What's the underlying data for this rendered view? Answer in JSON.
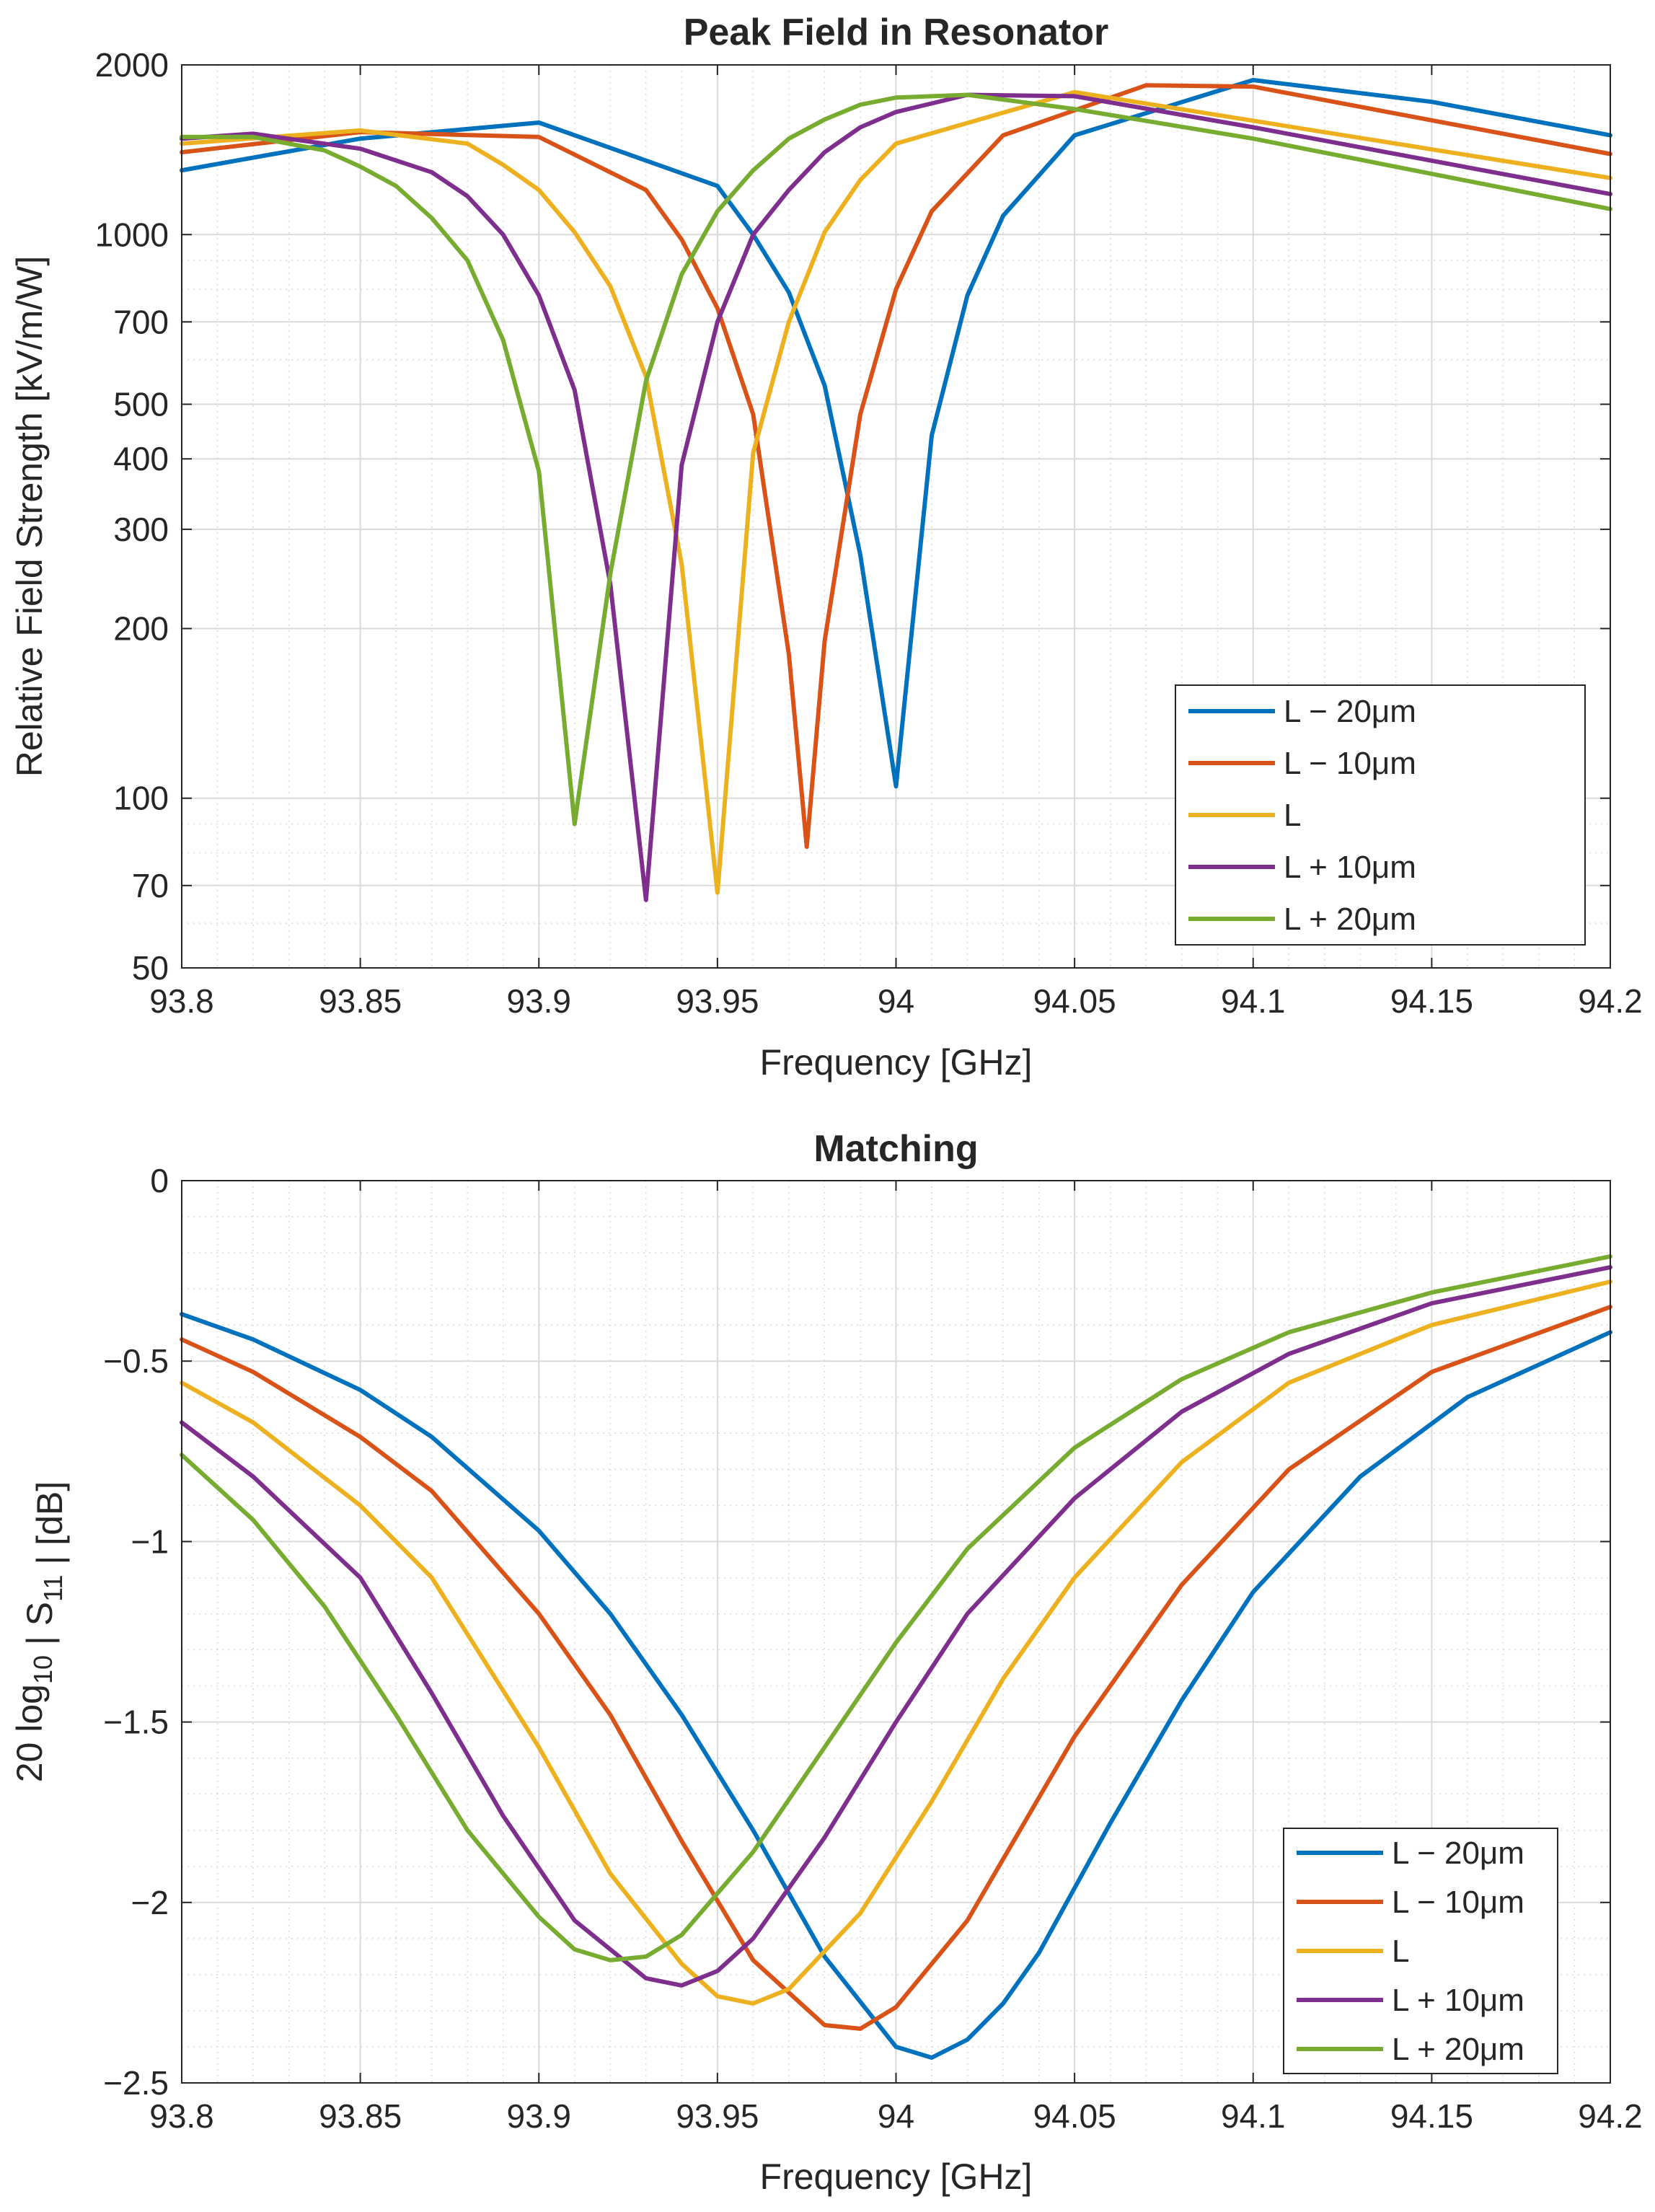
{
  "chart_data": [
    {
      "type": "line",
      "title": "Peak Field in Resonator",
      "xlabel": "Frequency [GHz]",
      "ylabel": "Relative Field Strength [kV/m/W]",
      "yscale": "log",
      "xlim": [
        93.8,
        94.2
      ],
      "ylim": [
        50,
        2000
      ],
      "xticks": [
        93.8,
        93.85,
        93.9,
        93.95,
        94.0,
        94.05,
        94.1,
        94.15,
        94.2
      ],
      "xtick_labels": [
        "93.8",
        "93.85",
        "93.9",
        "93.95",
        "94",
        "94.05",
        "94.1",
        "94.15",
        "94.2"
      ],
      "yticks": [
        50,
        70,
        100,
        200,
        300,
        400,
        500,
        700,
        1000,
        2000
      ],
      "ytick_labels": [
        "50",
        "70",
        "100",
        "200",
        "300",
        "400",
        "500",
        "700",
        "1000",
        "2000"
      ],
      "grid": true,
      "legend_position": "bottom-right",
      "series": [
        {
          "name": "L − 20μm",
          "color": "#0072BD",
          "x": [
            93.8,
            93.85,
            93.9,
            93.95,
            93.96,
            93.97,
            93.98,
            93.99,
            94.0,
            94.01,
            94.02,
            94.03,
            94.05,
            94.1,
            94.15,
            94.2
          ],
          "y": [
            1300,
            1480,
            1580,
            1220,
            1000,
            790,
            540,
            270,
            105,
            440,
            780,
            1080,
            1500,
            1880,
            1720,
            1500
          ]
        },
        {
          "name": "L − 10μm",
          "color": "#D95319",
          "x": [
            93.8,
            93.85,
            93.9,
            93.93,
            93.94,
            93.95,
            93.96,
            93.97,
            93.975,
            93.98,
            93.99,
            94.0,
            94.01,
            94.03,
            94.07,
            94.1,
            94.2
          ],
          "y": [
            1400,
            1520,
            1490,
            1200,
            980,
            740,
            480,
            180,
            82,
            190,
            480,
            800,
            1100,
            1500,
            1840,
            1830,
            1390
          ]
        },
        {
          "name": "L",
          "color": "#EDB120",
          "x": [
            93.8,
            93.85,
            93.88,
            93.89,
            93.9,
            93.91,
            93.92,
            93.93,
            93.94,
            93.95,
            93.96,
            93.97,
            93.98,
            93.99,
            94.0,
            94.05,
            94.2
          ],
          "y": [
            1450,
            1530,
            1450,
            1330,
            1200,
            1010,
            810,
            560,
            260,
            68,
            410,
            700,
            1010,
            1250,
            1450,
            1790,
            1260
          ]
        },
        {
          "name": "L + 10μm",
          "color": "#7E2F8E",
          "x": [
            93.8,
            93.82,
            93.85,
            93.87,
            93.88,
            93.89,
            93.9,
            93.91,
            93.92,
            93.93,
            93.94,
            93.95,
            93.96,
            93.97,
            93.98,
            93.99,
            94.0,
            94.02,
            94.05,
            94.1,
            94.2
          ],
          "y": [
            1480,
            1510,
            1420,
            1290,
            1170,
            1000,
            780,
            530,
            240,
            66,
            390,
            700,
            1000,
            1200,
            1400,
            1550,
            1650,
            1770,
            1760,
            1550,
            1180
          ]
        },
        {
          "name": "L + 20μm",
          "color": "#77AC30",
          "x": [
            93.8,
            93.82,
            93.84,
            93.85,
            93.86,
            93.87,
            93.88,
            93.89,
            93.9,
            93.91,
            93.92,
            93.93,
            93.94,
            93.95,
            93.96,
            93.97,
            93.98,
            93.99,
            94.0,
            94.02,
            94.05,
            94.1,
            94.2
          ],
          "y": [
            1490,
            1490,
            1410,
            1320,
            1220,
            1070,
            900,
            650,
            380,
            90,
            250,
            550,
            850,
            1100,
            1300,
            1480,
            1600,
            1700,
            1750,
            1770,
            1670,
            1480,
            1110
          ]
        }
      ]
    },
    {
      "type": "line",
      "title": "Matching",
      "xlabel": "Frequency [GHz]",
      "ylabel_prefix": "20 log",
      "ylabel_sub1": "10",
      "ylabel_mid": " | S",
      "ylabel_sub2": "11",
      "ylabel_suffix": " | [dB]",
      "xlim": [
        93.8,
        94.2
      ],
      "ylim": [
        -2.5,
        0
      ],
      "xticks": [
        93.8,
        93.85,
        93.9,
        93.95,
        94.0,
        94.05,
        94.1,
        94.15,
        94.2
      ],
      "xtick_labels": [
        "93.8",
        "93.85",
        "93.9",
        "93.95",
        "94",
        "94.05",
        "94.1",
        "94.15",
        "94.2"
      ],
      "yticks": [
        -2.5,
        -2,
        -1.5,
        -1,
        -0.5,
        0
      ],
      "ytick_labels": [
        "−2.5",
        "−2",
        "−1.5",
        "−1",
        "−0.5",
        "0"
      ],
      "grid": true,
      "legend_position": "bottom-right",
      "series": [
        {
          "name": "L − 20μm",
          "color": "#0072BD",
          "x": [
            93.8,
            93.82,
            93.85,
            93.87,
            93.9,
            93.92,
            93.94,
            93.96,
            93.98,
            94.0,
            94.01,
            94.02,
            94.03,
            94.04,
            94.06,
            94.08,
            94.1,
            94.13,
            94.16,
            94.2
          ],
          "y": [
            -0.37,
            -0.44,
            -0.58,
            -0.71,
            -0.97,
            -1.2,
            -1.48,
            -1.8,
            -2.15,
            -2.4,
            -2.43,
            -2.38,
            -2.28,
            -2.14,
            -1.78,
            -1.44,
            -1.14,
            -0.82,
            -0.6,
            -0.42
          ]
        },
        {
          "name": "L − 10μm",
          "color": "#D95319",
          "x": [
            93.8,
            93.82,
            93.85,
            93.87,
            93.9,
            93.92,
            93.94,
            93.96,
            93.98,
            93.99,
            94.0,
            94.02,
            94.05,
            94.08,
            94.11,
            94.15,
            94.2
          ],
          "y": [
            -0.44,
            -0.53,
            -0.71,
            -0.86,
            -1.2,
            -1.48,
            -1.83,
            -2.16,
            -2.34,
            -2.35,
            -2.29,
            -2.05,
            -1.54,
            -1.12,
            -0.8,
            -0.53,
            -0.35
          ]
        },
        {
          "name": "L",
          "color": "#EDB120",
          "x": [
            93.8,
            93.82,
            93.85,
            93.87,
            93.9,
            93.92,
            93.94,
            93.95,
            93.96,
            93.97,
            93.99,
            94.01,
            94.03,
            94.05,
            94.08,
            94.11,
            94.15,
            94.2
          ],
          "y": [
            -0.56,
            -0.67,
            -0.9,
            -1.1,
            -1.57,
            -1.92,
            -2.17,
            -2.26,
            -2.28,
            -2.24,
            -2.03,
            -1.72,
            -1.38,
            -1.1,
            -0.78,
            -0.56,
            -0.4,
            -0.28
          ]
        },
        {
          "name": "L + 10μm",
          "color": "#7E2F8E",
          "x": [
            93.8,
            93.82,
            93.85,
            93.87,
            93.89,
            93.91,
            93.93,
            93.94,
            93.95,
            93.96,
            93.98,
            94.0,
            94.02,
            94.05,
            94.08,
            94.11,
            94.15,
            94.2
          ],
          "y": [
            -0.67,
            -0.82,
            -1.1,
            -1.42,
            -1.76,
            -2.05,
            -2.21,
            -2.23,
            -2.19,
            -2.1,
            -1.82,
            -1.5,
            -1.2,
            -0.88,
            -0.64,
            -0.48,
            -0.34,
            -0.24
          ]
        },
        {
          "name": "L + 20μm",
          "color": "#77AC30",
          "x": [
            93.8,
            93.82,
            93.84,
            93.86,
            93.88,
            93.9,
            93.91,
            93.92,
            93.93,
            93.94,
            93.96,
            93.98,
            94.0,
            94.02,
            94.05,
            94.08,
            94.11,
            94.15,
            94.2
          ],
          "y": [
            -0.76,
            -0.94,
            -1.18,
            -1.48,
            -1.8,
            -2.04,
            -2.13,
            -2.16,
            -2.15,
            -2.09,
            -1.86,
            -1.57,
            -1.28,
            -1.02,
            -0.74,
            -0.55,
            -0.42,
            -0.31,
            -0.21
          ]
        }
      ]
    }
  ]
}
